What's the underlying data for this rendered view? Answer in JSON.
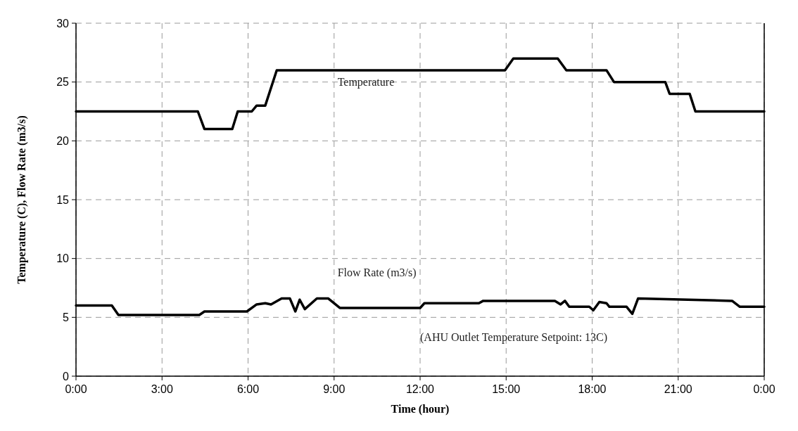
{
  "chart_data": {
    "type": "line",
    "xlabel": "Time (hour)",
    "ylabel": "Temperature (C), Flow Rate (m3/s)",
    "xlim": [
      0,
      24
    ],
    "ylim": [
      0,
      30
    ],
    "xticks": [
      {
        "value": 0,
        "label": "0:00"
      },
      {
        "value": 3,
        "label": "3:00"
      },
      {
        "value": 6,
        "label": "6:00"
      },
      {
        "value": 9,
        "label": "9:00"
      },
      {
        "value": 12,
        "label": "12:00"
      },
      {
        "value": 15,
        "label": "15:00"
      },
      {
        "value": 18,
        "label": "18:00"
      },
      {
        "value": 21,
        "label": "21:00"
      },
      {
        "value": 24,
        "label": "0:00"
      }
    ],
    "yticks": [
      0,
      5,
      10,
      15,
      20,
      25,
      30
    ],
    "grid": true,
    "marker": "none",
    "line_style": "solid",
    "annotations": [
      "(AHU Outlet Temperature Setpoint: 13C)"
    ],
    "series": [
      {
        "name": "Temperature",
        "color": "#000000",
        "x": [
          0,
          4.25,
          4.48,
          5.45,
          5.64,
          6.13,
          6.3,
          6.6,
          7.0,
          14.96,
          15.25,
          16.8,
          17.1,
          18.5,
          18.76,
          20.55,
          20.7,
          21.4,
          21.6,
          24
        ],
        "values": [
          22.5,
          22.5,
          21,
          21,
          22.5,
          22.5,
          23,
          23,
          26,
          26,
          27,
          27,
          26,
          26,
          25,
          25,
          24,
          24,
          22.5,
          22.5
        ]
      },
      {
        "name": "Flow Rate (m3/s)",
        "color": "#000000",
        "x": [
          0,
          1.25,
          1.48,
          4.3,
          4.48,
          5.96,
          6.3,
          6.6,
          6.8,
          7.17,
          7.46,
          7.65,
          7.8,
          7.98,
          8.4,
          8.8,
          9.2,
          12,
          12.15,
          14.05,
          14.2,
          16.7,
          16.9,
          17.05,
          17.2,
          17.9,
          18.04,
          18.25,
          18.5,
          18.6,
          19.2,
          19.4,
          19.6,
          22.88,
          23.15,
          24
        ],
        "values": [
          6,
          6,
          5.2,
          5.2,
          5.5,
          5.5,
          6.1,
          6.2,
          6.1,
          6.6,
          6.6,
          5.5,
          6.5,
          5.7,
          6.6,
          6.6,
          5.8,
          5.8,
          6.2,
          6.2,
          6.4,
          6.4,
          6.1,
          6.4,
          5.9,
          5.9,
          5.6,
          6.3,
          6.2,
          5.9,
          5.9,
          5.3,
          6.6,
          6.4,
          5.9,
          5.9
        ]
      }
    ]
  }
}
